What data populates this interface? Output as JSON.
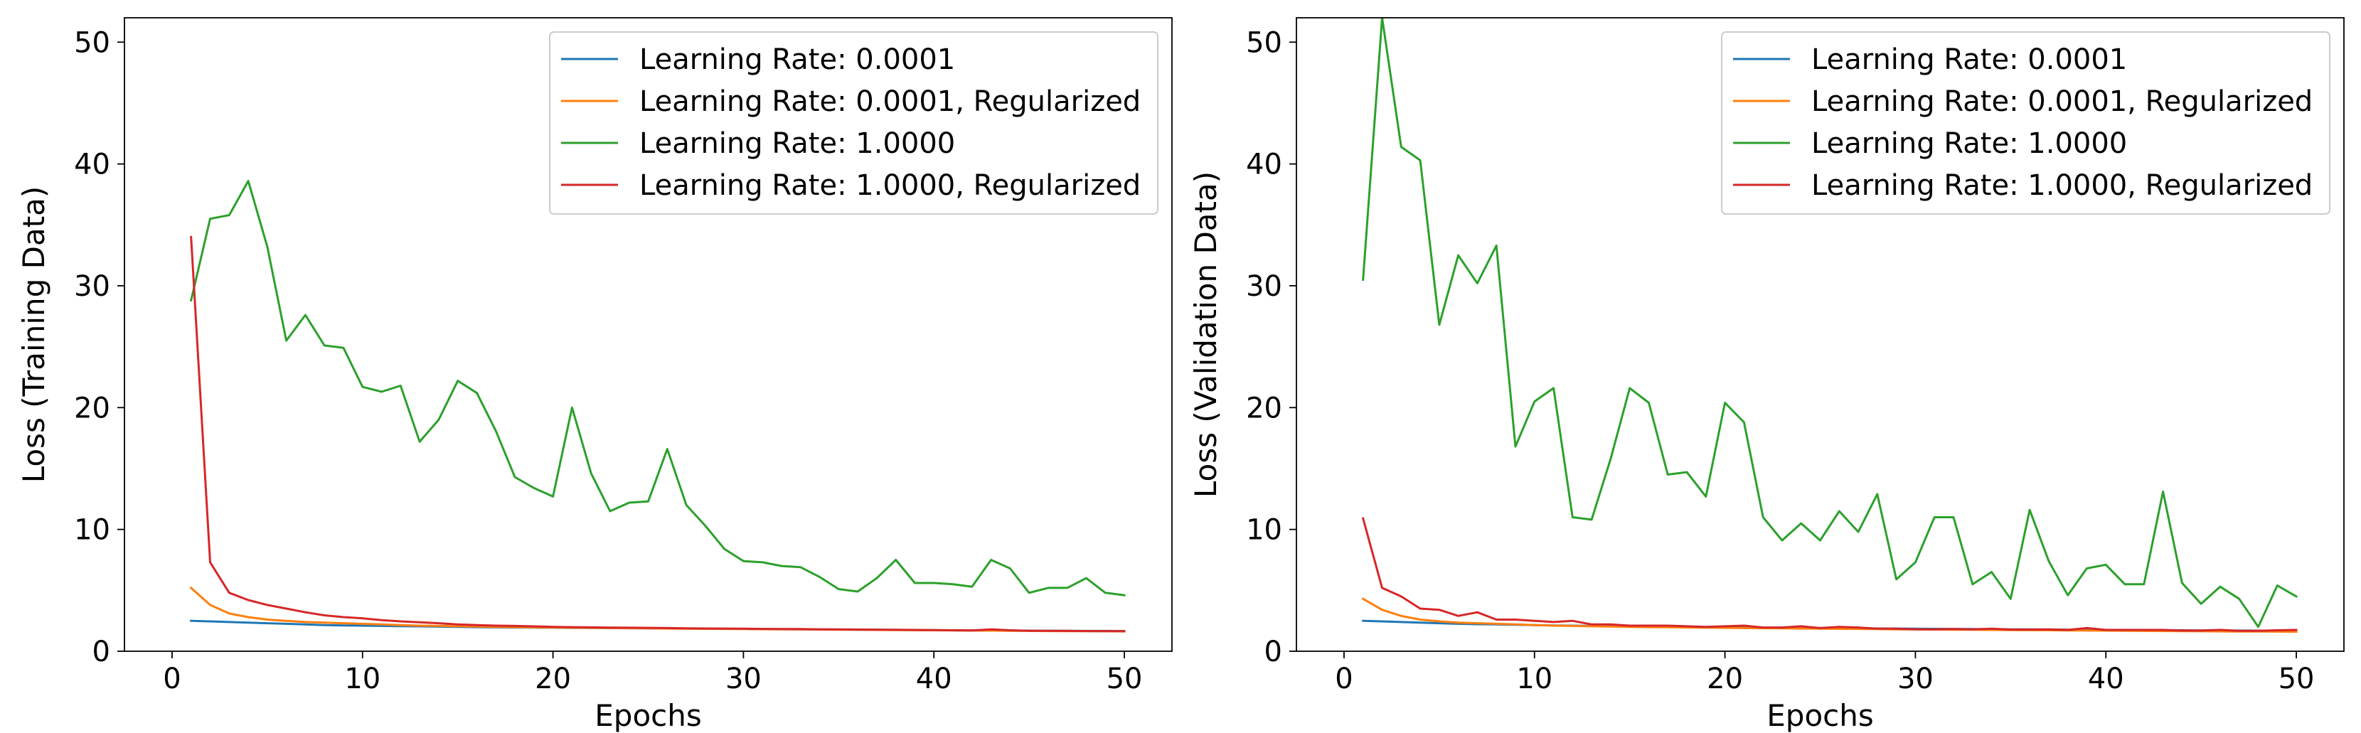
{
  "figure": {
    "background": "#ffffff"
  },
  "chart_data": [
    {
      "type": "line",
      "xlabel": "Epochs",
      "ylabel": "Loss (Training Data)",
      "xlim": [
        -2.5,
        52.5
      ],
      "ylim": [
        0,
        52
      ],
      "xticks": [
        0,
        10,
        20,
        30,
        40,
        50
      ],
      "yticks": [
        0,
        10,
        20,
        30,
        40,
        50
      ],
      "legend": "top-right",
      "x": [
        1,
        2,
        3,
        4,
        5,
        6,
        7,
        8,
        9,
        10,
        11,
        12,
        13,
        14,
        15,
        16,
        17,
        18,
        19,
        20,
        21,
        22,
        23,
        24,
        25,
        26,
        27,
        28,
        29,
        30,
        31,
        32,
        33,
        34,
        35,
        36,
        37,
        38,
        39,
        40,
        41,
        42,
        43,
        44,
        45,
        46,
        47,
        48,
        49,
        50
      ],
      "series": [
        {
          "name": "Learning Rate:  0.0001",
          "color": "#1f77b4",
          "values": [
            2.5,
            2.45,
            2.4,
            2.35,
            2.3,
            2.25,
            2.2,
            2.15,
            2.12,
            2.1,
            2.08,
            2.06,
            2.04,
            2.02,
            2.0,
            1.98,
            1.96,
            1.95,
            1.94,
            1.93,
            1.92,
            1.91,
            1.9,
            1.89,
            1.88,
            1.87,
            1.86,
            1.85,
            1.84,
            1.83,
            1.82,
            1.81,
            1.8,
            1.79,
            1.78,
            1.77,
            1.76,
            1.75,
            1.74,
            1.73,
            1.72,
            1.71,
            1.7,
            1.7,
            1.69,
            1.68,
            1.68,
            1.67,
            1.67,
            1.66
          ]
        },
        {
          "name": "Learning Rate:  0.0001, Regularized",
          "color": "#ff7f0e",
          "values": [
            5.2,
            3.8,
            3.1,
            2.8,
            2.6,
            2.5,
            2.4,
            2.35,
            2.3,
            2.25,
            2.2,
            2.15,
            2.1,
            2.08,
            2.05,
            2.03,
            2.0,
            1.98,
            1.96,
            1.95,
            1.93,
            1.92,
            1.9,
            1.89,
            1.88,
            1.86,
            1.85,
            1.84,
            1.83,
            1.82,
            1.81,
            1.8,
            1.79,
            1.78,
            1.77,
            1.76,
            1.75,
            1.74,
            1.73,
            1.72,
            1.71,
            1.7,
            1.69,
            1.68,
            1.67,
            1.66,
            1.65,
            1.65,
            1.64,
            1.63
          ]
        },
        {
          "name": "Learning Rate:  1.0000",
          "color": "#2ca02c",
          "values": [
            28.8,
            35.5,
            35.8,
            38.6,
            33.2,
            25.5,
            27.6,
            25.1,
            24.9,
            21.7,
            21.3,
            21.8,
            17.2,
            19.0,
            22.2,
            21.2,
            18.1,
            14.3,
            13.4,
            12.7,
            20.0,
            14.6,
            11.5,
            12.2,
            12.3,
            16.6,
            12.0,
            10.3,
            8.4,
            7.4,
            7.3,
            7.0,
            6.9,
            6.1,
            5.1,
            4.9,
            6.0,
            7.5,
            5.6,
            5.6,
            5.5,
            5.3,
            7.5,
            6.8,
            4.8,
            5.2,
            5.2,
            6.0,
            4.8,
            4.6
          ]
        },
        {
          "name": "Learning Rate:  1.0000, Regularized",
          "color": "#d62728",
          "values": [
            34.0,
            7.3,
            4.8,
            4.2,
            3.8,
            3.5,
            3.2,
            2.95,
            2.8,
            2.7,
            2.55,
            2.45,
            2.38,
            2.3,
            2.2,
            2.15,
            2.1,
            2.08,
            2.04,
            2.0,
            1.98,
            1.96,
            1.94,
            1.93,
            1.92,
            1.9,
            1.88,
            1.87,
            1.86,
            1.85,
            1.83,
            1.82,
            1.82,
            1.8,
            1.79,
            1.78,
            1.77,
            1.76,
            1.75,
            1.74,
            1.72,
            1.71,
            1.8,
            1.72,
            1.68,
            1.68,
            1.67,
            1.66,
            1.65,
            1.65
          ]
        }
      ]
    },
    {
      "type": "line",
      "xlabel": "Epochs",
      "ylabel": "Loss (Validation Data)",
      "xlim": [
        -2.5,
        52.5
      ],
      "ylim": [
        0,
        52
      ],
      "xticks": [
        0,
        10,
        20,
        30,
        40,
        50
      ],
      "yticks": [
        0,
        10,
        20,
        30,
        40,
        50
      ],
      "legend": "top-right",
      "x": [
        1,
        2,
        3,
        4,
        5,
        6,
        7,
        8,
        9,
        10,
        11,
        12,
        13,
        14,
        15,
        16,
        17,
        18,
        19,
        20,
        21,
        22,
        23,
        24,
        25,
        26,
        27,
        28,
        29,
        30,
        31,
        32,
        33,
        34,
        35,
        36,
        37,
        38,
        39,
        40,
        41,
        42,
        43,
        44,
        45,
        46,
        47,
        48,
        49,
        50
      ],
      "series": [
        {
          "name": "Learning Rate:  0.0001",
          "color": "#1f77b4",
          "values": [
            2.5,
            2.45,
            2.4,
            2.35,
            2.3,
            2.25,
            2.22,
            2.2,
            2.17,
            2.15,
            2.12,
            2.1,
            2.08,
            2.06,
            2.04,
            2.02,
            2.0,
            1.98,
            1.97,
            1.96,
            1.95,
            1.93,
            1.92,
            1.91,
            1.9,
            1.89,
            1.88,
            1.87,
            1.86,
            1.85,
            1.84,
            1.83,
            1.82,
            1.81,
            1.8,
            1.79,
            1.78,
            1.77,
            1.76,
            1.75,
            1.74,
            1.73,
            1.72,
            1.72,
            1.71,
            1.7,
            1.7,
            1.69,
            1.69,
            1.68
          ]
        },
        {
          "name": "Learning Rate:  0.0001, Regularized",
          "color": "#ff7f0e",
          "values": [
            4.3,
            3.4,
            2.9,
            2.6,
            2.45,
            2.35,
            2.3,
            2.25,
            2.2,
            2.15,
            2.1,
            2.08,
            2.05,
            2.03,
            2.0,
            1.98,
            1.97,
            1.95,
            1.93,
            1.92,
            1.9,
            1.89,
            1.88,
            1.86,
            1.85,
            1.84,
            1.83,
            1.82,
            1.8,
            1.79,
            1.78,
            1.77,
            1.76,
            1.75,
            1.74,
            1.73,
            1.72,
            1.71,
            1.7,
            1.69,
            1.68,
            1.67,
            1.66,
            1.65,
            1.64,
            1.63,
            1.62,
            1.62,
            1.61,
            1.6
          ]
        },
        {
          "name": "Learning Rate:  1.0000",
          "color": "#2ca02c",
          "values": [
            30.5,
            52.0,
            41.4,
            40.3,
            26.8,
            32.5,
            30.2,
            33.3,
            16.8,
            20.5,
            21.6,
            11.0,
            10.8,
            15.8,
            21.6,
            20.4,
            14.5,
            14.7,
            12.7,
            20.4,
            18.8,
            11.0,
            9.1,
            10.5,
            9.1,
            11.5,
            9.8,
            12.9,
            5.9,
            7.3,
            11.0,
            11.0,
            5.5,
            6.5,
            4.3,
            11.6,
            7.4,
            4.6,
            6.8,
            7.1,
            5.5,
            5.5,
            13.1,
            5.6,
            3.9,
            5.3,
            4.3,
            2.0,
            5.4,
            4.5
          ]
        },
        {
          "name": "Learning Rate:  1.0000, Regularized",
          "color": "#d62728",
          "values": [
            10.9,
            5.2,
            4.5,
            3.5,
            3.4,
            2.9,
            3.2,
            2.6,
            2.6,
            2.5,
            2.4,
            2.5,
            2.2,
            2.2,
            2.1,
            2.1,
            2.1,
            2.05,
            2.0,
            2.05,
            2.1,
            1.95,
            1.95,
            2.05,
            1.9,
            2.0,
            1.95,
            1.85,
            1.85,
            1.8,
            1.8,
            1.82,
            1.8,
            1.85,
            1.78,
            1.78,
            1.8,
            1.75,
            1.9,
            1.75,
            1.75,
            1.75,
            1.75,
            1.7,
            1.7,
            1.75,
            1.68,
            1.68,
            1.72,
            1.75
          ]
        }
      ]
    }
  ]
}
